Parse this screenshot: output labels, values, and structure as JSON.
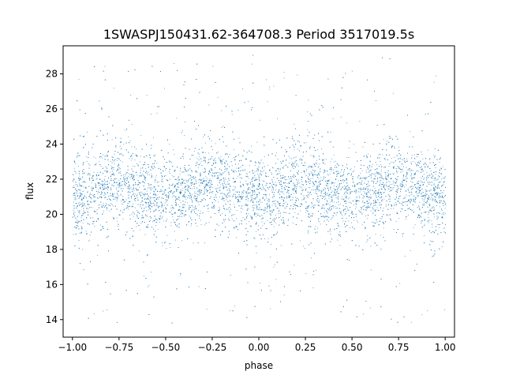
{
  "chart_data": {
    "type": "scatter",
    "title": "1SWASPJ150431.62-364708.3 Period 3517019.5s",
    "xlabel": "phase",
    "ylabel": "flux",
    "xlim": [
      -1.05,
      1.05
    ],
    "ylim": [
      13.0,
      29.6
    ],
    "xticks": [
      -1.0,
      -0.75,
      -0.5,
      -0.25,
      0.0,
      0.25,
      0.5,
      0.75,
      1.0
    ],
    "xtick_labels": [
      "−1.00",
      "−0.75",
      "−0.50",
      "−0.25",
      "0.00",
      "0.25",
      "0.50",
      "0.75",
      "1.00"
    ],
    "yticks": [
      14,
      16,
      18,
      20,
      22,
      24,
      26,
      28
    ],
    "ytick_labels": [
      "14",
      "16",
      "18",
      "20",
      "22",
      "24",
      "26",
      "28"
    ],
    "grid": false,
    "point_color": "#1f77b4",
    "series": [
      {
        "x_range": [
          -1.0,
          1.0
        ],
        "y_core_range": [
          18.0,
          24.5
        ],
        "y_full_range": [
          13.8,
          29.1
        ],
        "sample_points": [
          {
            "x": -1.0,
            "y": 21.5
          },
          {
            "x": -0.75,
            "y": 22.0
          },
          {
            "x": -0.5,
            "y": 21.5
          },
          {
            "x": -0.25,
            "y": 20.8
          },
          {
            "x": 0.0,
            "y": 21.6
          },
          {
            "x": 0.25,
            "y": 22.0
          },
          {
            "x": 0.5,
            "y": 21.5
          },
          {
            "x": 0.75,
            "y": 20.8
          },
          {
            "x": 1.0,
            "y": 21.6
          }
        ]
      }
    ]
  }
}
